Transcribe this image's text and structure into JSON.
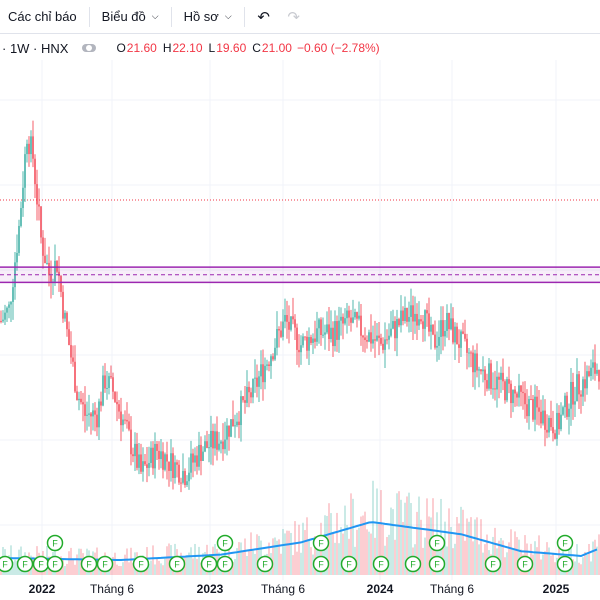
{
  "toolbar": {
    "indicators_label": "Các chỉ báo",
    "chart_type_label": "Biểu đồ",
    "profile_label": "Hồ sơ",
    "undo_icon": "undo-icon",
    "redo_icon": "redo-icon"
  },
  "legend": {
    "symbol": "· 1W · HNX",
    "open_label": "O",
    "open": "21.60",
    "high_label": "H",
    "high": "22.10",
    "low_label": "L",
    "low": "19.60",
    "close_label": "C",
    "close": "21.00",
    "change": "−0.60 (−2.78%)"
  },
  "colors": {
    "up": "#26a69a",
    "down": "#f23645",
    "volume_ma": "#2196f3",
    "level_line": "#9c27b0",
    "marker": "#22ab2b"
  },
  "marker_letter": "F",
  "chart_data": {
    "type": "line",
    "title": "",
    "xlabel": "",
    "ylabel": "",
    "x_tick_labels": [
      "2022",
      "Tháng 6",
      "2023",
      "Tháng 6",
      "2024",
      "Tháng 6",
      "2025"
    ],
    "y_range": [
      10,
      45
    ],
    "level_lines": [
      28.6,
      27.3
    ],
    "price_anchors": [
      {
        "w": 0,
        "v": 24
      },
      {
        "w": 4,
        "v": 25
      },
      {
        "w": 9,
        "v": 32
      },
      {
        "w": 13,
        "v": 40
      },
      {
        "w": 16,
        "v": 38
      },
      {
        "w": 20,
        "v": 31
      },
      {
        "w": 24,
        "v": 28
      },
      {
        "w": 28,
        "v": 29
      },
      {
        "w": 32,
        "v": 24
      },
      {
        "w": 38,
        "v": 18
      },
      {
        "w": 42,
        "v": 16
      },
      {
        "w": 48,
        "v": 16
      },
      {
        "w": 52,
        "v": 19
      },
      {
        "w": 56,
        "v": 18
      },
      {
        "w": 62,
        "v": 15
      },
      {
        "w": 70,
        "v": 11
      },
      {
        "w": 78,
        "v": 13
      },
      {
        "w": 84,
        "v": 12
      },
      {
        "w": 92,
        "v": 11
      },
      {
        "w": 100,
        "v": 13
      },
      {
        "w": 110,
        "v": 14
      },
      {
        "w": 118,
        "v": 16
      },
      {
        "w": 126,
        "v": 18
      },
      {
        "w": 134,
        "v": 21
      },
      {
        "w": 142,
        "v": 24
      },
      {
        "w": 150,
        "v": 22
      },
      {
        "w": 158,
        "v": 23
      },
      {
        "w": 166,
        "v": 23
      },
      {
        "w": 174,
        "v": 24
      },
      {
        "w": 182,
        "v": 23
      },
      {
        "w": 190,
        "v": 22
      },
      {
        "w": 200,
        "v": 24
      },
      {
        "w": 210,
        "v": 25
      },
      {
        "w": 216,
        "v": 22
      },
      {
        "w": 222,
        "v": 24
      },
      {
        "w": 230,
        "v": 22
      },
      {
        "w": 238,
        "v": 20
      },
      {
        "w": 246,
        "v": 19
      },
      {
        "w": 254,
        "v": 18
      },
      {
        "w": 262,
        "v": 17
      },
      {
        "w": 270,
        "v": 16
      },
      {
        "w": 278,
        "v": 15
      },
      {
        "w": 286,
        "v": 18
      },
      {
        "w": 292,
        "v": 19
      },
      {
        "w": 298,
        "v": 20
      }
    ],
    "volume_ma_anchors": [
      {
        "w": 0,
        "v": 0.25
      },
      {
        "w": 60,
        "v": 0.22
      },
      {
        "w": 110,
        "v": 0.3
      },
      {
        "w": 150,
        "v": 0.48
      },
      {
        "w": 185,
        "v": 0.78
      },
      {
        "w": 200,
        "v": 0.72
      },
      {
        "w": 230,
        "v": 0.6
      },
      {
        "w": 260,
        "v": 0.35
      },
      {
        "w": 290,
        "v": 0.28
      },
      {
        "w": 300,
        "v": 0.4
      }
    ],
    "markers": [
      {
        "w": 2,
        "row": 0
      },
      {
        "w": 12,
        "row": 0
      },
      {
        "w": 20,
        "row": 0
      },
      {
        "w": 27,
        "row": 1
      },
      {
        "w": 27,
        "row": 0
      },
      {
        "w": 44,
        "row": 0
      },
      {
        "w": 52,
        "row": 0
      },
      {
        "w": 70,
        "row": 0
      },
      {
        "w": 88,
        "row": 0
      },
      {
        "w": 104,
        "row": 0
      },
      {
        "w": 112,
        "row": 1
      },
      {
        "w": 112,
        "row": 0
      },
      {
        "w": 132,
        "row": 0
      },
      {
        "w": 160,
        "row": 1
      },
      {
        "w": 160,
        "row": 0
      },
      {
        "w": 174,
        "row": 0
      },
      {
        "w": 190,
        "row": 0
      },
      {
        "w": 206,
        "row": 0
      },
      {
        "w": 218,
        "row": 1
      },
      {
        "w": 218,
        "row": 0
      },
      {
        "w": 246,
        "row": 0
      },
      {
        "w": 262,
        "row": 0
      },
      {
        "w": 282,
        "row": 1
      },
      {
        "w": 282,
        "row": 0
      }
    ]
  }
}
